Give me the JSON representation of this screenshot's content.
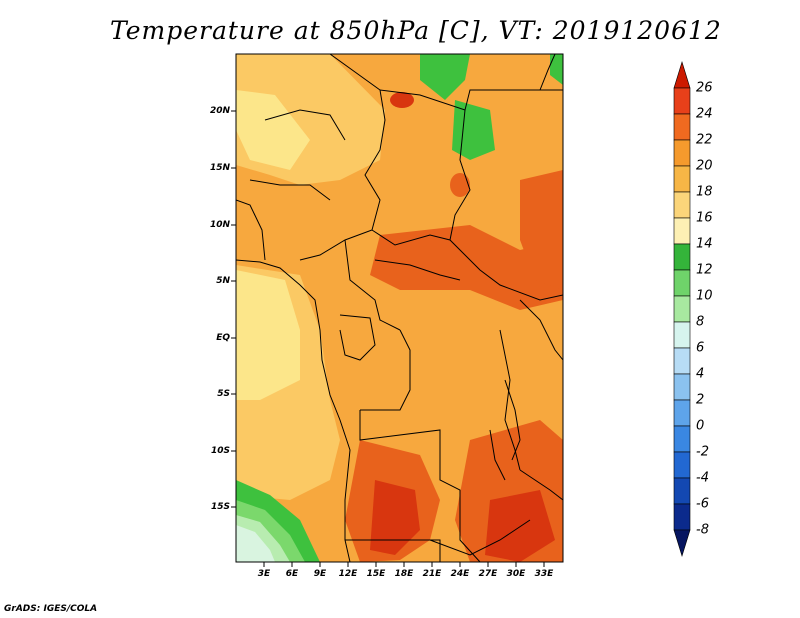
{
  "title": "Temperature at 850hPa [C], VT: 2019120612",
  "credit": "GrADS: IGES/COLA",
  "map": {
    "lat_labels": [
      "20N",
      "15N",
      "10N",
      "5N",
      "EQ",
      "5S",
      "10S",
      "15S"
    ],
    "lon_labels": [
      "3E",
      "6E",
      "9E",
      "12E",
      "15E",
      "18E",
      "21E",
      "24E",
      "27E",
      "30E",
      "33E"
    ],
    "colors": {
      "c14_16": "#fce68a",
      "c16_18": "#fbc964",
      "c18_20": "#f7a83e",
      "c20_22": "#f18a2c",
      "c22_24": "#e8621c",
      "c24_26": "#d8360f",
      "c10_12": "#7bd86c",
      "c8_10": "#b8ecb0",
      "c6_8": "#d9f4e0",
      "c12_14": "#3ec13e"
    }
  },
  "colorbar": {
    "labels": [
      "26",
      "24",
      "22",
      "20",
      "18",
      "16",
      "14",
      "12",
      "10",
      "8",
      "6",
      "4",
      "2",
      "0",
      "-2",
      "-4",
      "-6",
      "-8"
    ],
    "colors": [
      "#cc1a00",
      "#e8401a",
      "#f06a20",
      "#f59a2d",
      "#f7b646",
      "#fbd57a",
      "#fdf0b4",
      "#34b43a",
      "#6fd36a",
      "#a8e9a0",
      "#d6f4ee",
      "#b7dcf5",
      "#8bc2ef",
      "#5ea4ea",
      "#3a87e2",
      "#2268d2",
      "#1348b2",
      "#0b2a8c",
      "#061560"
    ]
  }
}
